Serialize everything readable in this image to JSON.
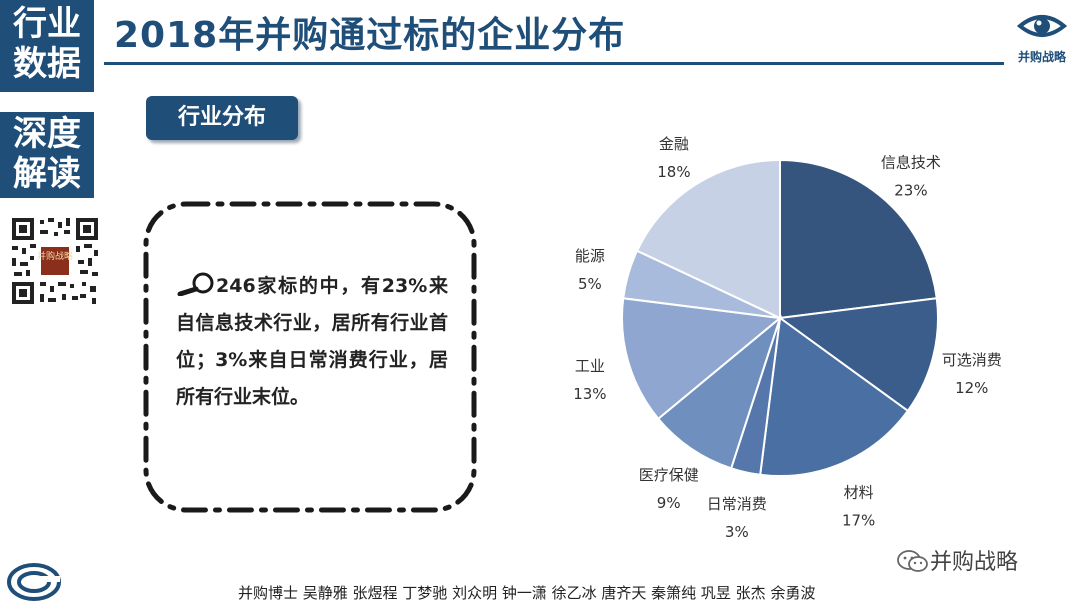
{
  "side": {
    "box1": [
      "行业",
      "数据"
    ],
    "box2": [
      "深度",
      "解读"
    ]
  },
  "title": "2018年并购通过标的企业分布",
  "logo": {
    "text": "并购战略",
    "icon": "eye-icon"
  },
  "qr": {
    "center_text": "并购战略"
  },
  "section_label": "行业分布",
  "callout": {
    "text": "246家标的中，有23%来自信息技术行业，居所有行业首位；3%来自日常消费行业，居所有行业末位。",
    "icon": "magnifier-icon"
  },
  "chart_data": {
    "type": "pie",
    "slices": [
      {
        "label": "信息技术",
        "value": 23,
        "pct": "23%",
        "color": "#36557e"
      },
      {
        "label": "可选消费",
        "value": 12,
        "pct": "12%",
        "color": "#3a5d8c"
      },
      {
        "label": "材料",
        "value": 17,
        "pct": "17%",
        "color": "#4a6fa2"
      },
      {
        "label": "日常消费",
        "value": 3,
        "pct": "3%",
        "color": "#5677ab"
      },
      {
        "label": "医疗保健",
        "value": 9,
        "pct": "9%",
        "color": "#6f8fbf"
      },
      {
        "label": "工业",
        "value": 13,
        "pct": "13%",
        "color": "#8fa7d0"
      },
      {
        "label": "能源",
        "value": 5,
        "pct": "5%",
        "color": "#a9bbdc"
      },
      {
        "label": "金融",
        "value": 18,
        "pct": "18%",
        "color": "#c6d1e6"
      }
    ]
  },
  "wechat": {
    "text": "并购战略",
    "icon": "wechat-icon"
  },
  "authors": "并购博士 吴静雅 张煜程 丁梦驰 刘众明 钟一潇 徐乙冰 唐齐天 秦箫纯 巩昱 张杰 余勇波"
}
